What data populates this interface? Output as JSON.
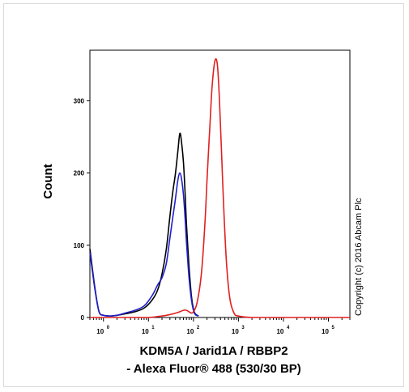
{
  "chart_data": {
    "type": "line",
    "x_scale": "log",
    "xlim": [
      0.5,
      300000
    ],
    "ylim": [
      0,
      370
    ],
    "x_ticks": [
      {
        "value": 1,
        "base": "10",
        "exp": "0"
      },
      {
        "value": 10,
        "base": "10",
        "exp": "1"
      },
      {
        "value": 100,
        "base": "10",
        "exp": "2"
      },
      {
        "value": 1000,
        "base": "10",
        "exp": "3"
      },
      {
        "value": 10000,
        "base": "10",
        "exp": "4"
      },
      {
        "value": 100000,
        "base": "10",
        "exp": "5"
      }
    ],
    "y_ticks": [
      0,
      100,
      200,
      300
    ],
    "xlabel_line1": "KDM5A / Jarid1A / RBBP2",
    "xlabel_line2": "- Alexa Fluor® 488 (530/30 BP)",
    "ylabel": "Count",
    "annotation": "Copyright (c) 2016 Abcam Plc",
    "grid": false,
    "legend": "none",
    "series": [
      {
        "color": "#000000",
        "x": [
          0.5,
          0.65,
          0.8,
          1,
          1.4,
          2,
          3,
          5,
          8,
          12,
          16,
          20,
          25,
          30,
          35,
          40,
          45,
          50,
          55,
          60,
          65,
          70,
          80,
          90,
          100,
          110,
          130
        ],
        "y": [
          95,
          40,
          8,
          3,
          2,
          3,
          5,
          8,
          13,
          24,
          38,
          60,
          95,
          140,
          175,
          200,
          230,
          255,
          240,
          215,
          175,
          130,
          70,
          30,
          12,
          5,
          2
        ]
      },
      {
        "color": "#1f1fcc",
        "x": [
          0.5,
          0.65,
          0.8,
          1,
          1.4,
          2,
          3,
          5,
          8,
          12,
          16,
          20,
          25,
          30,
          35,
          40,
          45,
          50,
          55,
          60,
          65,
          70,
          80,
          90,
          100,
          110,
          130
        ],
        "y": [
          90,
          38,
          8,
          3,
          2,
          3,
          6,
          10,
          16,
          30,
          45,
          55,
          75,
          110,
          140,
          165,
          190,
          200,
          190,
          170,
          140,
          105,
          55,
          25,
          10,
          4,
          2
        ]
      },
      {
        "color": "#e02020",
        "x": [
          0.5,
          1,
          5,
          10,
          20,
          30,
          40,
          50,
          60,
          70,
          80,
          90,
          100,
          120,
          150,
          180,
          200,
          230,
          260,
          300,
          340,
          380,
          420,
          480,
          550,
          650,
          800,
          1000,
          2000,
          10000,
          100000,
          300000
        ],
        "y": [
          0,
          0,
          0,
          0,
          2,
          4,
          6,
          8,
          10,
          10,
          8,
          6,
          8,
          20,
          60,
          130,
          190,
          260,
          320,
          355,
          350,
          300,
          230,
          140,
          70,
          25,
          6,
          2,
          0,
          0,
          0,
          0
        ]
      }
    ]
  }
}
